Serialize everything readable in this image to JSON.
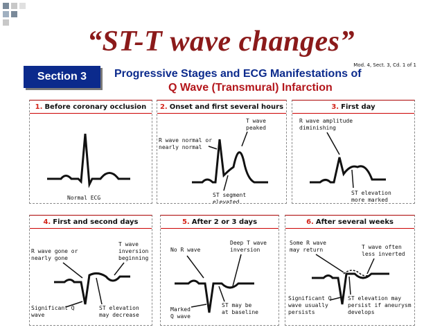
{
  "slide_title": "“ST-T wave changes”",
  "figure": {
    "section": "Section 3",
    "reference": "Mod. 4, Sect. 3, Cd. 1 of 1",
    "heading_line1": "Progressive Stages and ECG Manifestations of",
    "heading_line2": "Q Wave (Transmural) Infarction",
    "colors": {
      "navy": "#0b2a8c",
      "red": "#b3161b"
    }
  },
  "panels": [
    {
      "num": "1.",
      "title": "Before coronary occlusion",
      "labels": {
        "bottom": "Normal ECG"
      }
    },
    {
      "num": "2.",
      "title": "Onset and first several hours",
      "labels": {
        "twave1": "T wave",
        "twave2": "peaked",
        "rwave1": "R wave normal or",
        "rwave2": "nearly normal",
        "st1": "ST segment",
        "st2": "elevated"
      }
    },
    {
      "num": "3.",
      "title": "First day",
      "labels": {
        "r1": "R wave amplitude",
        "r2": "diminishing",
        "st1": "ST elevation",
        "st2": "more marked"
      }
    },
    {
      "num": "4.",
      "title": "First and second days",
      "labels": {
        "r1": "R wave gone or",
        "r2": "nearly gone",
        "t1": "T wave",
        "t2": "inversion",
        "t3": "beginning",
        "q1": "Significant Q",
        "q2": "wave",
        "st1": "ST elevation",
        "st2": "may decrease"
      }
    },
    {
      "num": "5.",
      "title": "After 2 or 3 days",
      "labels": {
        "r1": "No R wave",
        "t1": "Deep T wave",
        "t2": "inversion",
        "q1": "Marked",
        "q2": "Q wave",
        "st1": "ST may be",
        "st2": "at baseline"
      }
    },
    {
      "num": "6.",
      "title": "After several weeks",
      "labels": {
        "r1": "Some R wave",
        "r2": "may return",
        "t1": "T wave often",
        "t2": "less inverted",
        "q1": "Significant Q",
        "q2": "wave usually",
        "q3": "persists",
        "st1": "ST elevation may",
        "st2": "persist if aneurysm",
        "st3": "develops"
      }
    }
  ]
}
